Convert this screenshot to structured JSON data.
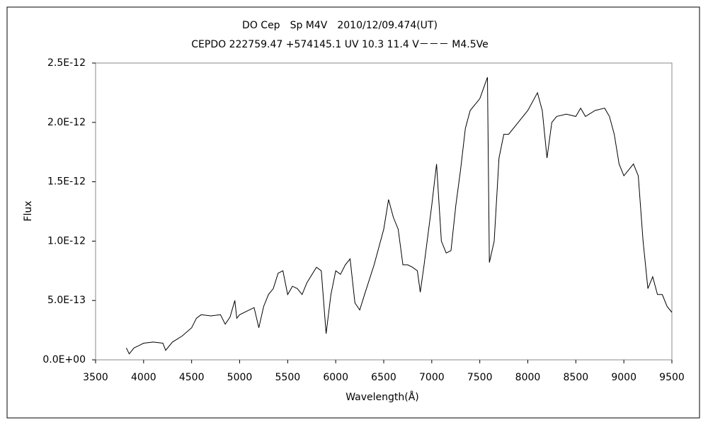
{
  "chart_data": {
    "type": "line",
    "title": "DO Cep　Sp M4V　2010/12/09.474(UT)",
    "subtitle": "CEPDO 222759.47 +574145.1 UV 10.3 11.4 V－－－ M4.5Ve",
    "xlabel": "Wavelength(Å)",
    "ylabel": "Flux",
    "x": [
      3820,
      3850,
      3900,
      3950,
      4000,
      4100,
      4200,
      4230,
      4300,
      4400,
      4500,
      4550,
      4600,
      4700,
      4800,
      4850,
      4900,
      4950,
      4970,
      5000,
      5100,
      5150,
      5200,
      5250,
      5300,
      5350,
      5400,
      5450,
      5500,
      5550,
      5600,
      5650,
      5700,
      5800,
      5850,
      5900,
      5950,
      6000,
      6050,
      6100,
      6150,
      6200,
      6250,
      6300,
      6400,
      6450,
      6500,
      6550,
      6600,
      6650,
      6700,
      6750,
      6800,
      6850,
      6880,
      6920,
      7000,
      7050,
      7100,
      7150,
      7200,
      7250,
      7300,
      7350,
      7400,
      7500,
      7580,
      7600,
      7650,
      7700,
      7750,
      7800,
      7900,
      8000,
      8100,
      8150,
      8200,
      8250,
      8300,
      8400,
      8500,
      8550,
      8600,
      8700,
      8800,
      8850,
      8900,
      8950,
      9000,
      9050,
      9100,
      9150,
      9200,
      9250,
      9300,
      9350,
      9400,
      9450,
      9500
    ],
    "series": [
      {
        "name": "Flux",
        "color": "#000000",
        "values": [
          1e-13,
          5e-14,
          1e-13,
          1.2e-13,
          1.4e-13,
          1.5e-13,
          1.4e-13,
          8e-14,
          1.5e-13,
          2e-13,
          2.7e-13,
          3.5e-13,
          3.8e-13,
          3.7e-13,
          3.8e-13,
          3e-13,
          3.6e-13,
          5e-13,
          3.5e-13,
          3.8e-13,
          4.2e-13,
          4.4e-13,
          2.7e-13,
          4.5e-13,
          5.5e-13,
          6e-13,
          7.3e-13,
          7.5e-13,
          5.5e-13,
          6.2e-13,
          6e-13,
          5.5e-13,
          6.5e-13,
          7.8e-13,
          7.5e-13,
          2.2e-13,
          5.5e-13,
          7.5e-13,
          7.2e-13,
          8e-13,
          8.5e-13,
          4.8e-13,
          4.2e-13,
          5.5e-13,
          8e-13,
          9.5e-13,
          1.1e-12,
          1.35e-12,
          1.2e-12,
          1.1e-12,
          8e-13,
          8e-13,
          7.8e-13,
          7.5e-13,
          5.7e-13,
          8e-13,
          1.3e-12,
          1.65e-12,
          1e-12,
          9e-13,
          9.2e-13,
          1.3e-12,
          1.6e-12,
          1.95e-12,
          2.1e-12,
          2.2e-12,
          2.38e-12,
          8.2e-13,
          1e-12,
          1.7e-12,
          1.9e-12,
          1.9e-12,
          2e-12,
          2.1e-12,
          2.25e-12,
          2.1e-12,
          1.7e-12,
          2e-12,
          2.05e-12,
          2.07e-12,
          2.05e-12,
          2.12e-12,
          2.05e-12,
          2.1e-12,
          2.12e-12,
          2.05e-12,
          1.9e-12,
          1.65e-12,
          1.55e-12,
          1.6e-12,
          1.65e-12,
          1.55e-12,
          1e-12,
          6e-13,
          7e-13,
          5.5e-13,
          5.5e-13,
          4.5e-13,
          4e-13
        ]
      }
    ],
    "xlim": [
      3500,
      9500
    ],
    "xticks": [
      3500,
      4000,
      4500,
      5000,
      5500,
      6000,
      6500,
      7000,
      7500,
      8000,
      8500,
      9000,
      9500
    ],
    "ylim": [
      0,
      2.5e-12
    ],
    "yticks": [
      {
        "value": 0,
        "label": "0.0E+00"
      },
      {
        "value": 5e-13,
        "label": "5.0E-13"
      },
      {
        "value": 1e-12,
        "label": "1.0E-12"
      },
      {
        "value": 1.5e-12,
        "label": "1.5E-12"
      },
      {
        "value": 2e-12,
        "label": "2.0E-12"
      },
      {
        "value": 2.5e-12,
        "label": "2.5E-12"
      }
    ],
    "grid": false
  }
}
